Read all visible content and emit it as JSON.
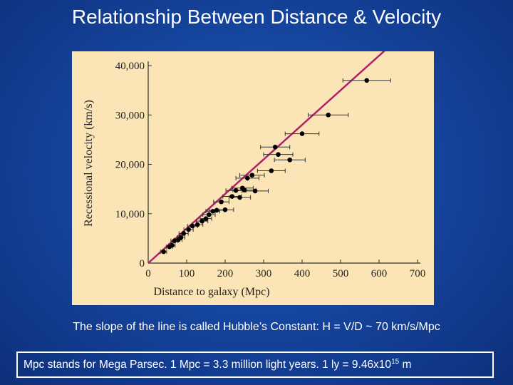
{
  "slide": {
    "title": "Relationship Between Distance & Velocity",
    "caption": "The slope of the line is called Hubble’s Constant:  H = V/D ~ 70 km/s/Mpc",
    "footnote": {
      "text": "Mpc stands for Mega Parsec.  1 Mpc = 3.3 million light years. 1 ly = 9.46x10",
      "exponent": "15",
      "suffix": " m"
    }
  },
  "colors": {
    "panel_background": "#fbe5b6",
    "fit_line": "#b0206a",
    "points": "#000000",
    "slide_background": "#1646a0"
  },
  "chart_data": {
    "type": "scatter",
    "xlabel": "Distance to galaxy (Mpc)",
    "ylabel": "Recessional velocity (km/s)",
    "xlim": [
      0,
      700
    ],
    "ylim": [
      0,
      40000
    ],
    "xticks": [
      0,
      100,
      200,
      300,
      400,
      500,
      600,
      700
    ],
    "xtick_labels": [
      "0",
      "100",
      "200",
      "300",
      "400",
      "500",
      "600",
      "700"
    ],
    "yticks": [
      0,
      10000,
      20000,
      30000,
      40000
    ],
    "ytick_labels": [
      "0",
      "10,000",
      "20,000",
      "30,000",
      "40,000"
    ],
    "grid": false,
    "fit_line": {
      "slope": 70,
      "x_range": [
        0,
        630
      ]
    },
    "points": [
      {
        "x": 40,
        "y": 2300,
        "err": 8
      },
      {
        "x": 55,
        "y": 3300,
        "err": 8
      },
      {
        "x": 62,
        "y": 3600,
        "err": 8
      },
      {
        "x": 68,
        "y": 4500,
        "err": 9
      },
      {
        "x": 78,
        "y": 4700,
        "err": 10
      },
      {
        "x": 85,
        "y": 5200,
        "err": 10
      },
      {
        "x": 92,
        "y": 6000,
        "err": 12
      },
      {
        "x": 105,
        "y": 6800,
        "err": 12
      },
      {
        "x": 115,
        "y": 7500,
        "err": 13
      },
      {
        "x": 128,
        "y": 7800,
        "err": 14
      },
      {
        "x": 140,
        "y": 8500,
        "err": 15
      },
      {
        "x": 150,
        "y": 9000,
        "err": 15
      },
      {
        "x": 158,
        "y": 9800,
        "err": 16
      },
      {
        "x": 168,
        "y": 10500,
        "err": 18
      },
      {
        "x": 178,
        "y": 10700,
        "err": 20
      },
      {
        "x": 190,
        "y": 12400,
        "err": 20
      },
      {
        "x": 200,
        "y": 10800,
        "err": 22
      },
      {
        "x": 218,
        "y": 13500,
        "err": 24
      },
      {
        "x": 228,
        "y": 14700,
        "err": 26
      },
      {
        "x": 238,
        "y": 13300,
        "err": 28
      },
      {
        "x": 245,
        "y": 15200,
        "err": 28
      },
      {
        "x": 250,
        "y": 14800,
        "err": 30
      },
      {
        "x": 258,
        "y": 17200,
        "err": 30
      },
      {
        "x": 270,
        "y": 17800,
        "err": 32
      },
      {
        "x": 278,
        "y": 14600,
        "err": 34
      },
      {
        "x": 320,
        "y": 18700,
        "err": 36
      },
      {
        "x": 330,
        "y": 23500,
        "err": 38
      },
      {
        "x": 338,
        "y": 22000,
        "err": 38
      },
      {
        "x": 368,
        "y": 20900,
        "err": 40
      },
      {
        "x": 400,
        "y": 26200,
        "err": 44
      },
      {
        "x": 468,
        "y": 30000,
        "err": 52
      },
      {
        "x": 568,
        "y": 37000,
        "err": 62
      }
    ]
  }
}
